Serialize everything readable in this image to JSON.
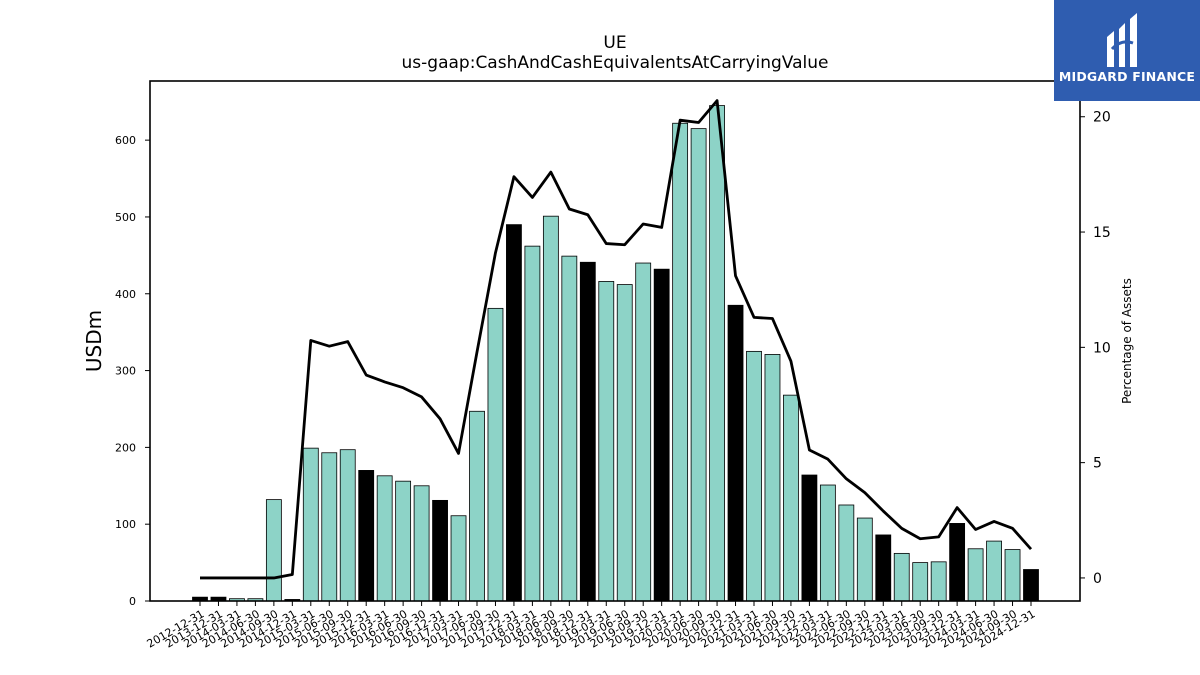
{
  "chart_data": {
    "type": "bar",
    "title": "UE",
    "subtitle": "us-gaap:CashAndCashEquivalentsAtCarryingValue",
    "ylabel": "USDm",
    "y2label": "Percentage of Assets",
    "ylim": [
      0,
      677
    ],
    "y2lim": [
      -1,
      21.55
    ],
    "yticks": [
      0,
      100,
      200,
      300,
      400,
      500,
      600
    ],
    "y2ticks": [
      0,
      5,
      10,
      15,
      20
    ],
    "categories": [
      "2012-12-31",
      "2013-12-31",
      "2014-03-31",
      "2014-06-30",
      "2014-09-30",
      "2014-12-31",
      "2015-03-31",
      "2015-06-30",
      "2015-09-30",
      "2015-12-31",
      "2016-03-31",
      "2016-06-30",
      "2016-09-30",
      "2016-12-31",
      "2017-03-31",
      "2017-06-30",
      "2017-09-30",
      "2017-12-31",
      "2018-03-31",
      "2018-06-30",
      "2018-09-30",
      "2018-12-31",
      "2019-03-31",
      "2019-06-30",
      "2019-09-30",
      "2019-12-31",
      "2020-03-31",
      "2020-06-30",
      "2020-09-30",
      "2020-12-31",
      "2021-03-31",
      "2021-06-30",
      "2021-09-30",
      "2021-12-31",
      "2022-03-31",
      "2022-06-30",
      "2022-09-30",
      "2022-12-31",
      "2023-03-31",
      "2023-06-30",
      "2023-09-30",
      "2023-12-31",
      "2024-03-31",
      "2024-06-30",
      "2024-09-30",
      "2024-12-31"
    ],
    "series": [
      {
        "type": "bar",
        "values": [
          5,
          5,
          3,
          3,
          132,
          2,
          199,
          193,
          197,
          170,
          163,
          156,
          150,
          131,
          111,
          247,
          381,
          490,
          462,
          501,
          449,
          441,
          416,
          412,
          440,
          432,
          622,
          615,
          645,
          385,
          325,
          321,
          268,
          164,
          151,
          125,
          108,
          86,
          62,
          50,
          51,
          101,
          68,
          78,
          67,
          41
        ]
      },
      {
        "type": "line",
        "axis": "right",
        "values": [
          0,
          0,
          0,
          0,
          0,
          0.15,
          10.3,
          10.05,
          10.25,
          8.8,
          8.5,
          8.25,
          7.85,
          6.9,
          5.4,
          9.8,
          14.1,
          17.4,
          16.5,
          17.6,
          16,
          15.75,
          14.5,
          14.45,
          15.35,
          15.2,
          19.85,
          19.75,
          20.7,
          13.1,
          11.3,
          11.25,
          9.4,
          5.55,
          5.15,
          4.3,
          3.7,
          2.9,
          2.15,
          1.7,
          1.78,
          3.05,
          2.1,
          2.45,
          2.15,
          1.25
        ]
      }
    ],
    "colors": {
      "bar": "#8dd3c7",
      "bar_year_end": "#000000",
      "line": "#000000"
    },
    "grid": false
  },
  "logo": {
    "text": "MIDGARD FINANCE",
    "color": "#2f5db0"
  }
}
